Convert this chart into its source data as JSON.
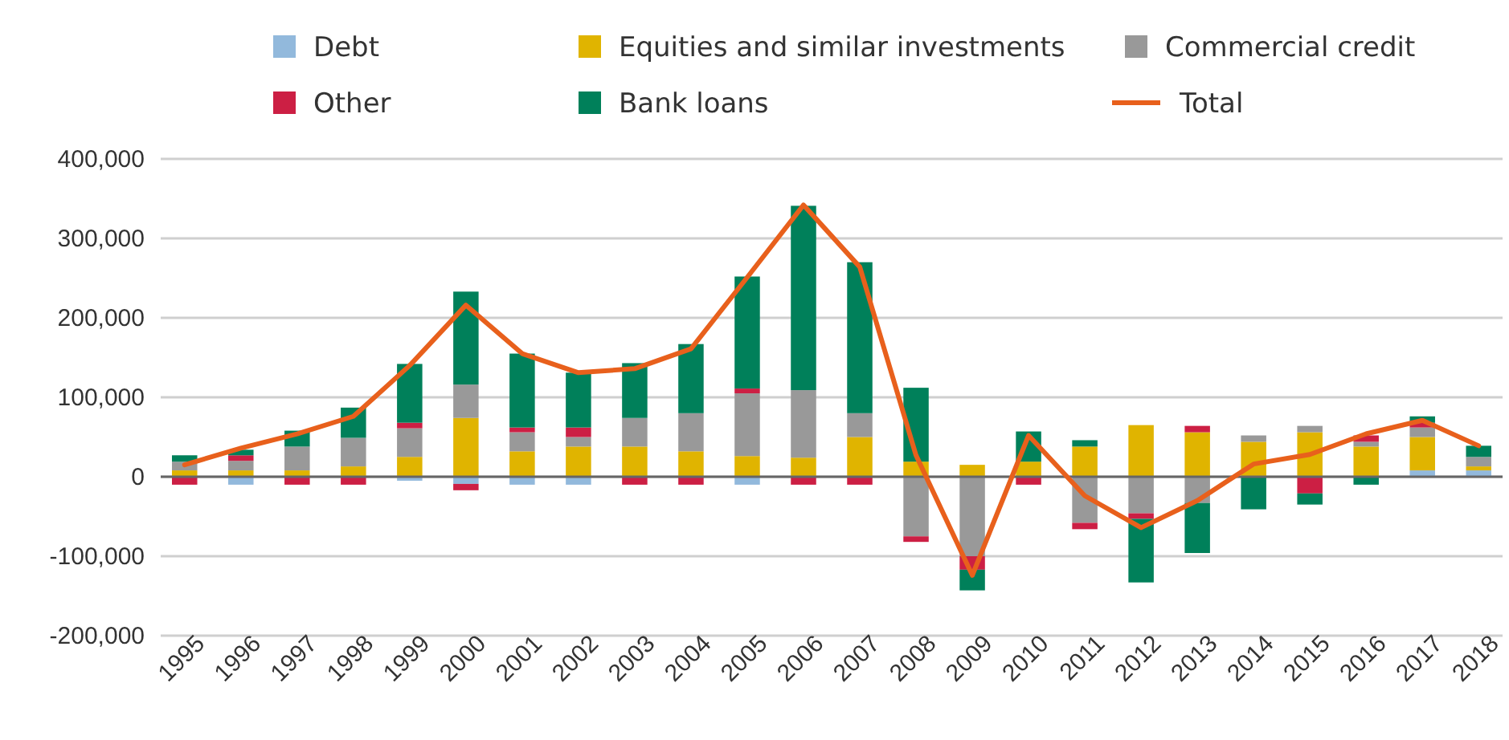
{
  "chart_data": {
    "type": "bar",
    "stacked": true,
    "categories": [
      "1995",
      "1996",
      "1997",
      "1998",
      "1999",
      "2000",
      "2001",
      "2002",
      "2003",
      "2004",
      "2005",
      "2006",
      "2007",
      "2008",
      "2009",
      "2010",
      "2011",
      "2012",
      "2013",
      "2014",
      "2015",
      "2016",
      "2017",
      "2018"
    ],
    "series": [
      {
        "name": "Debt",
        "color": "#92b9dc",
        "values": [
          0,
          -10000,
          0,
          0,
          -5000,
          -9000,
          -10000,
          -10000,
          0,
          0,
          -10000,
          0,
          0,
          0,
          0,
          0,
          0,
          0,
          0,
          0,
          0,
          0,
          8000,
          8000
        ]
      },
      {
        "name": "Equities and similar investments",
        "color": "#e0b400",
        "values": [
          8000,
          8000,
          8000,
          13000,
          25000,
          74000,
          32000,
          38000,
          38000,
          32000,
          26000,
          24000,
          50000,
          19000,
          15000,
          19000,
          38000,
          65000,
          56000,
          44000,
          56000,
          38000,
          42000,
          5000
        ]
      },
      {
        "name": "Commercial credit",
        "color": "#999999",
        "values": [
          11000,
          12000,
          30000,
          36000,
          36000,
          42000,
          24000,
          12000,
          36000,
          48000,
          79000,
          85000,
          30000,
          -75000,
          -100000,
          0,
          -58000,
          -46000,
          -33000,
          8000,
          8000,
          6000,
          12000,
          12000
        ]
      },
      {
        "name": "Other",
        "color": "#cc1f44",
        "values": [
          -10000,
          7000,
          -10000,
          -10000,
          7000,
          -8000,
          6000,
          12000,
          -10000,
          -10000,
          6000,
          -10000,
          -10000,
          -7000,
          -17000,
          -10000,
          -8000,
          -7000,
          8000,
          0,
          -21000,
          8000,
          6000,
          0
        ]
      },
      {
        "name": "Bank loans",
        "color": "#00805a",
        "values": [
          8000,
          7000,
          20000,
          38000,
          74000,
          117000,
          93000,
          69000,
          69000,
          87000,
          141000,
          232000,
          190000,
          93000,
          -26000,
          38000,
          8000,
          -80000,
          -63000,
          -41000,
          -14000,
          -10000,
          8000,
          14000
        ]
      },
      {
        "name": "Total",
        "type": "line",
        "color": "#e8601c",
        "values": [
          15000,
          36000,
          54000,
          76000,
          140000,
          216000,
          155000,
          131000,
          136000,
          161000,
          251000,
          342000,
          264000,
          27000,
          -124000,
          52000,
          -24000,
          -64000,
          -30000,
          16000,
          28000,
          54000,
          71000,
          39000
        ]
      }
    ],
    "ylim": [
      -200000,
      400000
    ],
    "yticks": [
      {
        "value": -200000,
        "label": "-200,000"
      },
      {
        "value": -100000,
        "label": "-100,000"
      },
      {
        "value": 0,
        "label": "0"
      },
      {
        "value": 100000,
        "label": "100,000"
      },
      {
        "value": 200000,
        "label": "200,000"
      },
      {
        "value": 300000,
        "label": "300,000"
      },
      {
        "value": 400000,
        "label": "400,000"
      }
    ],
    "grid": "y",
    "legend": "top"
  }
}
